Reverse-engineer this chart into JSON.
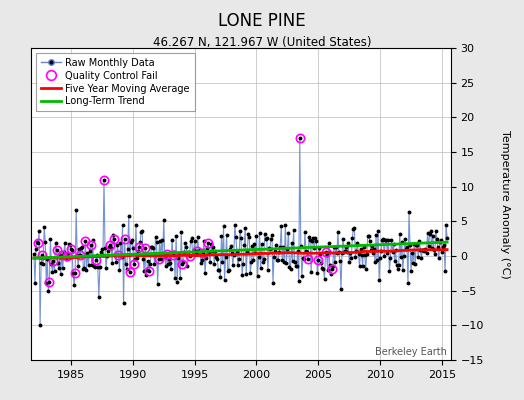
{
  "title": "LONE PINE",
  "subtitle": "46.267 N, 121.967 W (United States)",
  "ylabel": "Temperature Anomaly (°C)",
  "xlabel_years": [
    1985,
    1990,
    1995,
    2000,
    2005,
    2010,
    2015
  ],
  "ylim": [
    -15,
    30
  ],
  "yticks": [
    -15,
    -10,
    -5,
    0,
    5,
    10,
    15,
    20,
    25,
    30
  ],
  "year_start": 1982,
  "year_end": 2015.5,
  "background_color": "#e8e8e8",
  "plot_bg_color": "#ffffff",
  "raw_line_color": "#6688cc",
  "raw_marker_color": "#000000",
  "qc_marker_color": "#ff00ff",
  "moving_avg_color": "#ff0000",
  "trend_color": "#00bb00",
  "watermark": "Berkeley Earth",
  "seed": 17
}
